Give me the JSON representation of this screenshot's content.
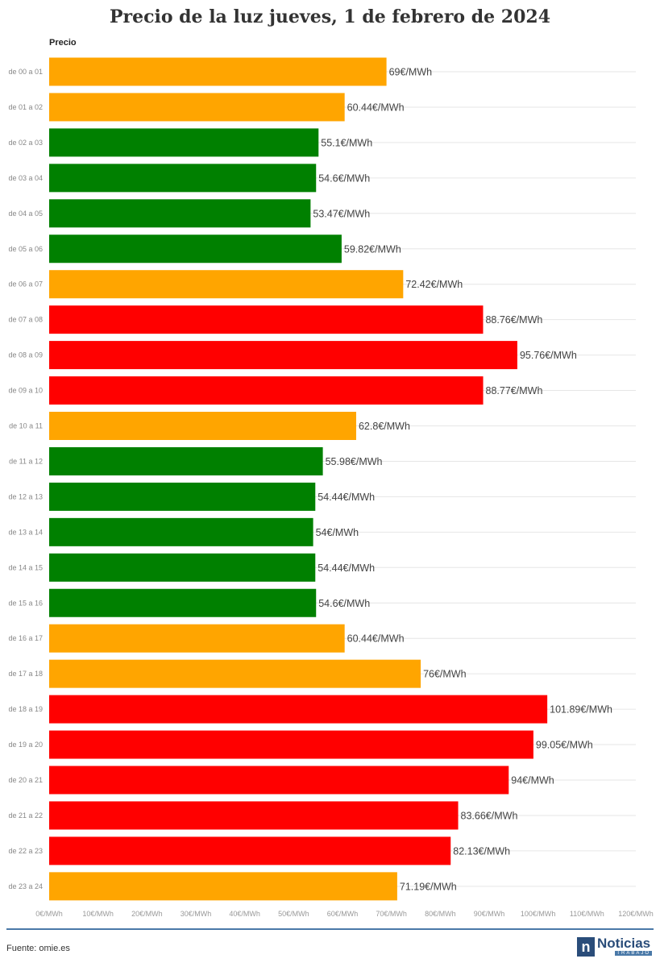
{
  "title": "Precio de la luz jueves, 1 de febrero de 2024",
  "source": "Fuente: omie.es",
  "logo": {
    "main": "Noticias",
    "sub": "TRABAJO",
    "letter": "n"
  },
  "colors": {
    "low": "#008000",
    "mid": "#FFA500",
    "high": "#FF0000",
    "axis_line": "#4a79a8"
  },
  "chart_data": {
    "type": "bar",
    "orientation": "horizontal",
    "series_label": "Precio",
    "unit": "€/MWh",
    "categories": [
      "de 00 a 01",
      "de 01 a 02",
      "de 02 a 03",
      "de 03 a 04",
      "de 04 a 05",
      "de 05 a 06",
      "de 06 a 07",
      "de 07 a 08",
      "de 08 a 09",
      "de 09 a 10",
      "de 10 a 11",
      "de 11 a 12",
      "de 12 a 13",
      "de 13 a 14",
      "de 14 a 15",
      "de 15 a 16",
      "de 16 a 17",
      "de 17 a 18",
      "de 18 a 19",
      "de 19 a 20",
      "de 20 a 21",
      "de 21 a 22",
      "de 22 a 23",
      "de 23 a 24"
    ],
    "values": [
      69,
      60.44,
      55.1,
      54.6,
      53.47,
      59.82,
      72.42,
      88.76,
      95.76,
      88.77,
      62.8,
      55.98,
      54.44,
      54,
      54.44,
      54.6,
      60.44,
      76,
      101.89,
      99.05,
      94,
      83.66,
      82.13,
      71.19
    ],
    "value_labels": [
      "69€/MWh",
      "60.44€/MWh",
      "55.1€/MWh",
      "54.6€/MWh",
      "53.47€/MWh",
      "59.82€/MWh",
      "72.42€/MWh",
      "88.76€/MWh",
      "95.76€/MWh",
      "88.77€/MWh",
      "62.8€/MWh",
      "55.98€/MWh",
      "54.44€/MWh",
      "54€/MWh",
      "54.44€/MWh",
      "54.6€/MWh",
      "60.44€/MWh",
      "76€/MWh",
      "101.89€/MWh",
      "99.05€/MWh",
      "94€/MWh",
      "83.66€/MWh",
      "82.13€/MWh",
      "71.19€/MWh"
    ],
    "bar_levels": [
      "mid",
      "mid",
      "low",
      "low",
      "low",
      "low",
      "mid",
      "high",
      "high",
      "high",
      "mid",
      "low",
      "low",
      "low",
      "low",
      "low",
      "mid",
      "mid",
      "high",
      "high",
      "high",
      "high",
      "high",
      "mid"
    ],
    "xlim": [
      0,
      120
    ],
    "x_ticks": [
      0,
      10,
      20,
      30,
      40,
      50,
      60,
      70,
      80,
      90,
      100,
      110,
      120
    ],
    "x_tick_labels": [
      "0€/MWh",
      "10€/MWh",
      "20€/MWh",
      "30€/MWh",
      "40€/MWh",
      "50€/MWh",
      "60€/MWh",
      "70€/MWh",
      "80€/MWh",
      "90€/MWh",
      "100€/MWh",
      "110€/MWh",
      "120€/MWh"
    ],
    "grid": true,
    "legend": "none"
  }
}
